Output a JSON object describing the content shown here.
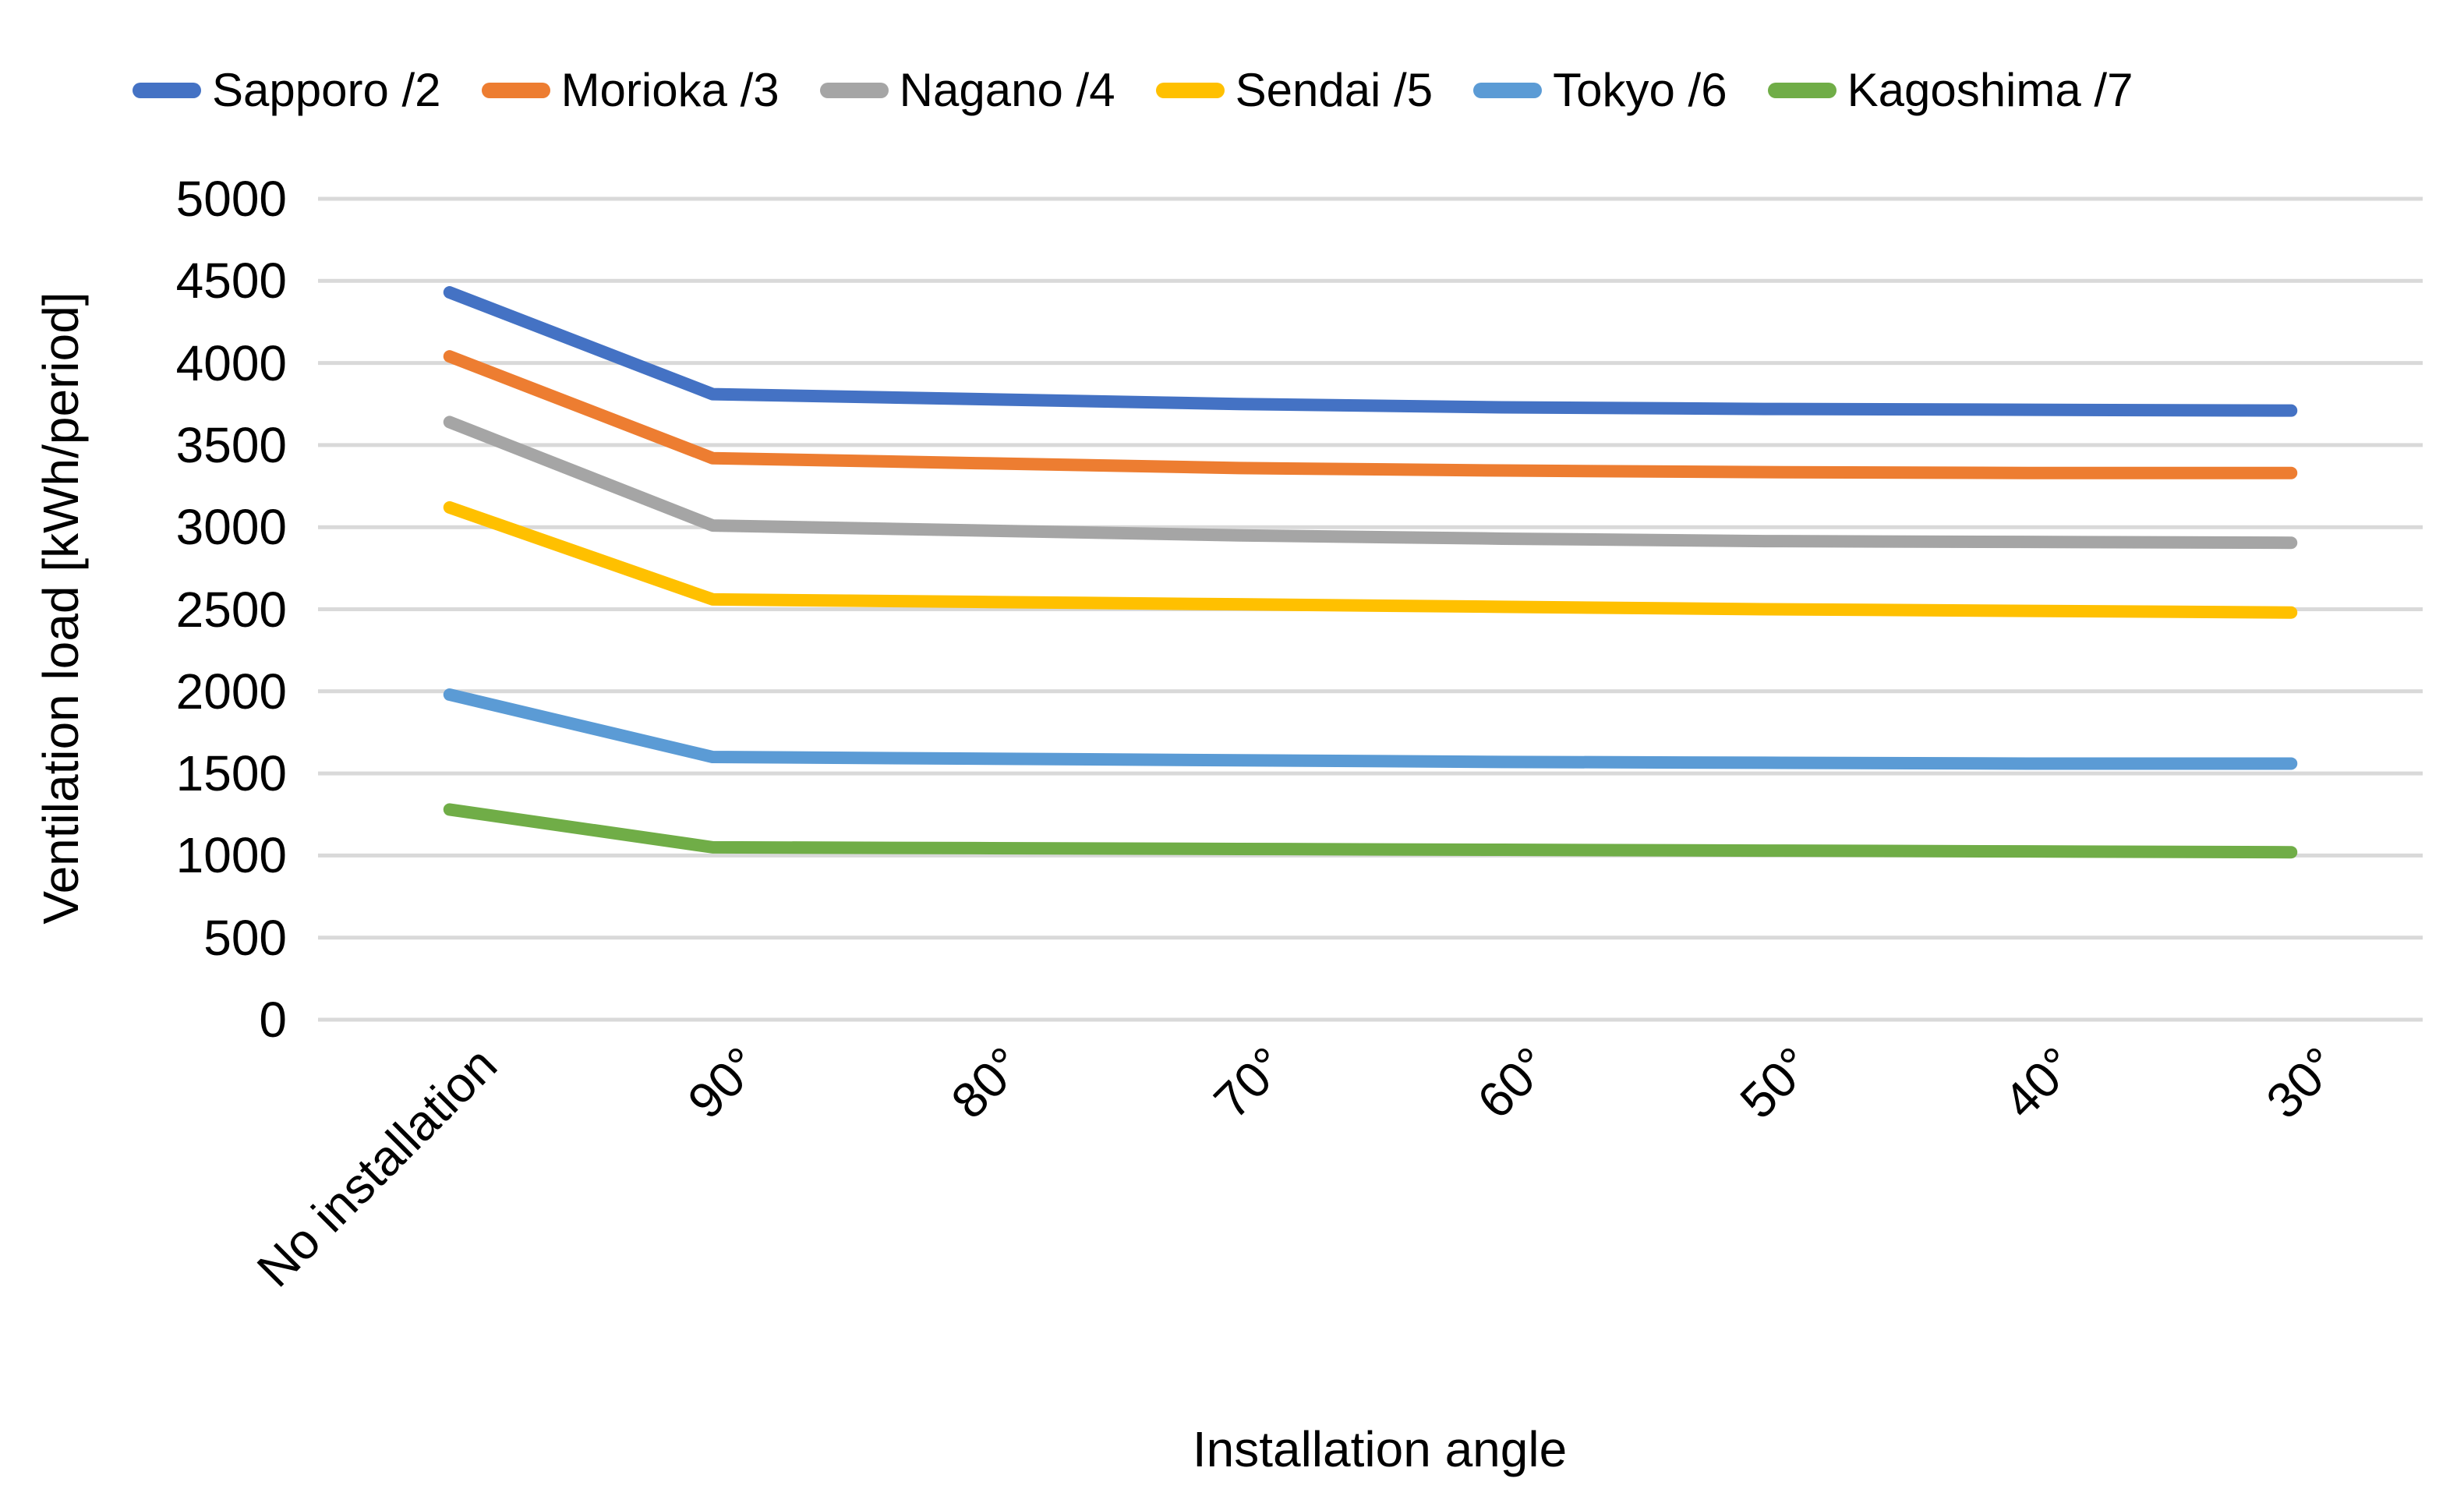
{
  "chart_data": {
    "type": "line",
    "title": "",
    "xlabel": "Installation angle",
    "ylabel": "Ventilation load [kWh/period]",
    "categories": [
      "No installation",
      "90°",
      "80°",
      "70°",
      "60°",
      "50°",
      "40°",
      "30°"
    ],
    "series": [
      {
        "name": "Sapporo /2",
        "color": "#4472C4",
        "values": [
          4430,
          3810,
          3780,
          3750,
          3730,
          3720,
          3715,
          3710
        ]
      },
      {
        "name": "Morioka /3",
        "color": "#ED7D31",
        "values": [
          4040,
          3420,
          3390,
          3360,
          3345,
          3335,
          3330,
          3330
        ]
      },
      {
        "name": "Nagano /4",
        "color": "#A5A5A5",
        "values": [
          3640,
          3010,
          2980,
          2950,
          2930,
          2915,
          2910,
          2905
        ]
      },
      {
        "name": "Sendai /5",
        "color": "#FFC000",
        "values": [
          3120,
          2560,
          2545,
          2530,
          2515,
          2500,
          2490,
          2480
        ]
      },
      {
        "name": "Tokyo /6",
        "color": "#5B9BD5",
        "values": [
          1980,
          1600,
          1590,
          1580,
          1570,
          1565,
          1560,
          1560
        ]
      },
      {
        "name": "Kagoshima /7",
        "color": "#70AD47",
        "values": [
          1280,
          1050,
          1045,
          1040,
          1035,
          1030,
          1025,
          1020
        ]
      }
    ],
    "ylim": [
      0,
      5000
    ],
    "y_ticks": [
      5000,
      4500,
      4000,
      3500,
      3000,
      2500,
      2000,
      1500,
      1000,
      500,
      0
    ],
    "grid": "horizontal",
    "gridline_color": "#D9D9D9",
    "legend_position": "top",
    "background_color": "#FFFFFF"
  }
}
